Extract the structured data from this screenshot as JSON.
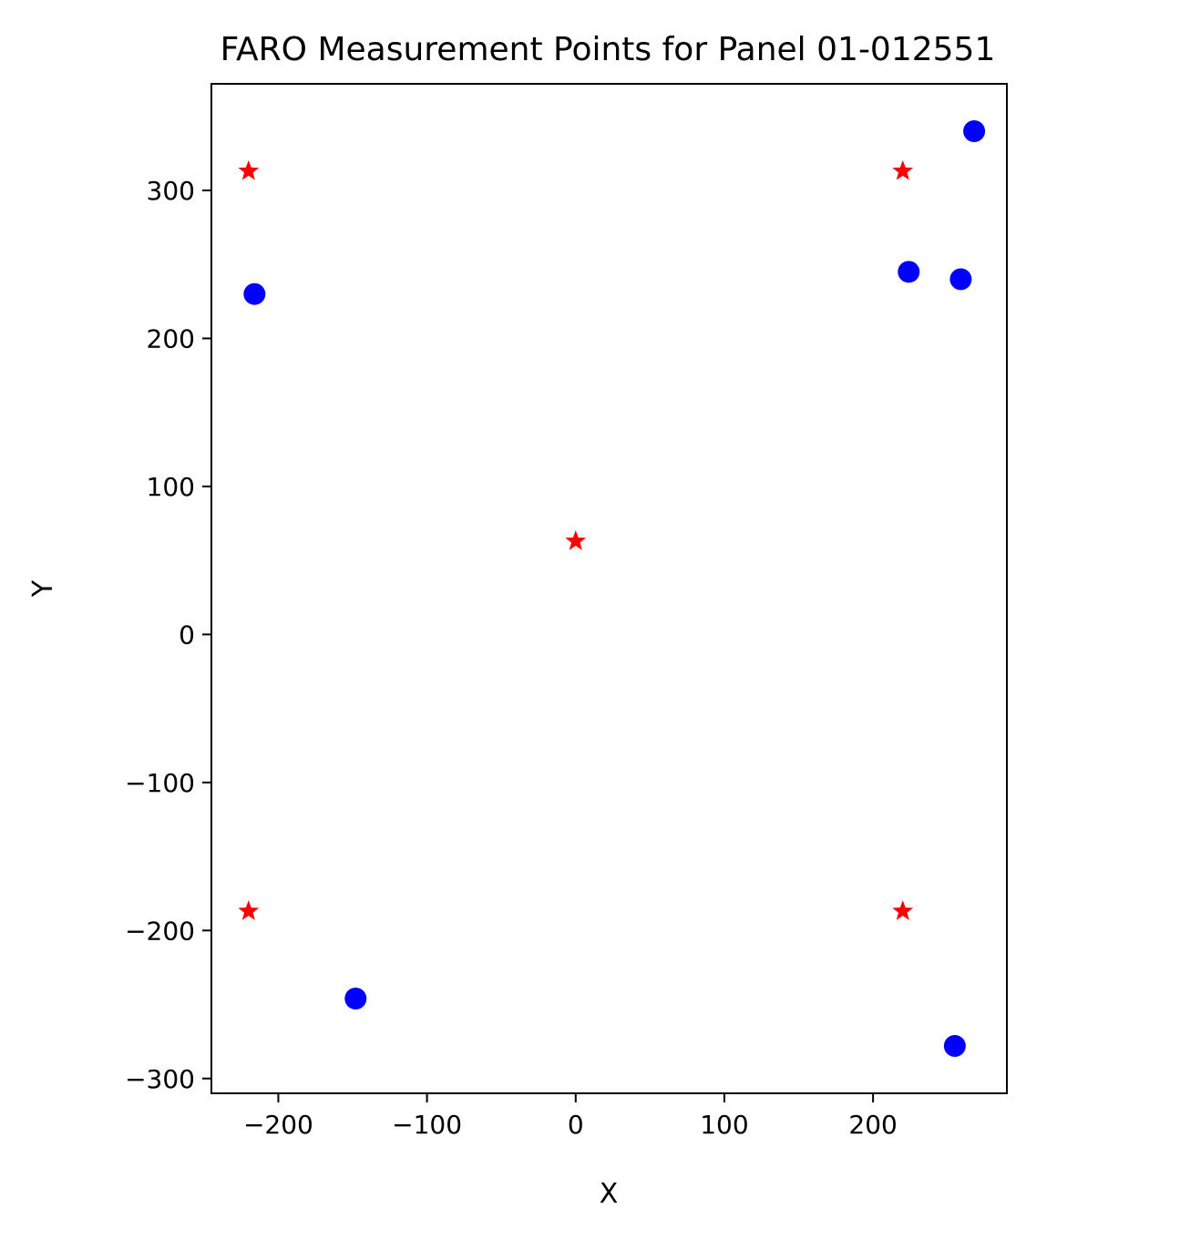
{
  "chart_data": {
    "type": "scatter",
    "title": "FARO Measurement Points for Panel 01-012551",
    "xlabel": "X",
    "ylabel": "Y",
    "xlim": [
      -245,
      290
    ],
    "ylim": [
      -310,
      372
    ],
    "grid": false,
    "x_ticks": [
      -200,
      -100,
      0,
      100,
      200
    ],
    "y_ticks": [
      -300,
      -200,
      -100,
      0,
      100,
      200,
      300
    ],
    "x_tick_labels": [
      "−200",
      "−100",
      "0",
      "100",
      "200"
    ],
    "y_tick_labels": [
      "−300",
      "−200",
      "−100",
      "0",
      "100",
      "200",
      "300"
    ],
    "series": [
      {
        "marker": "circle",
        "color": "#0000ff",
        "points": [
          {
            "x": 268,
            "y": 340
          },
          {
            "x": 224,
            "y": 245
          },
          {
            "x": 259,
            "y": 240
          },
          {
            "x": -216,
            "y": 230
          },
          {
            "x": -148,
            "y": -246
          },
          {
            "x": 255,
            "y": -278
          }
        ]
      },
      {
        "marker": "star",
        "color": "#ff0000",
        "points": [
          {
            "x": -220,
            "y": 313
          },
          {
            "x": 220,
            "y": 313
          },
          {
            "x": 0,
            "y": 63
          },
          {
            "x": -220,
            "y": -187
          },
          {
            "x": 220,
            "y": -187
          }
        ]
      }
    ]
  }
}
